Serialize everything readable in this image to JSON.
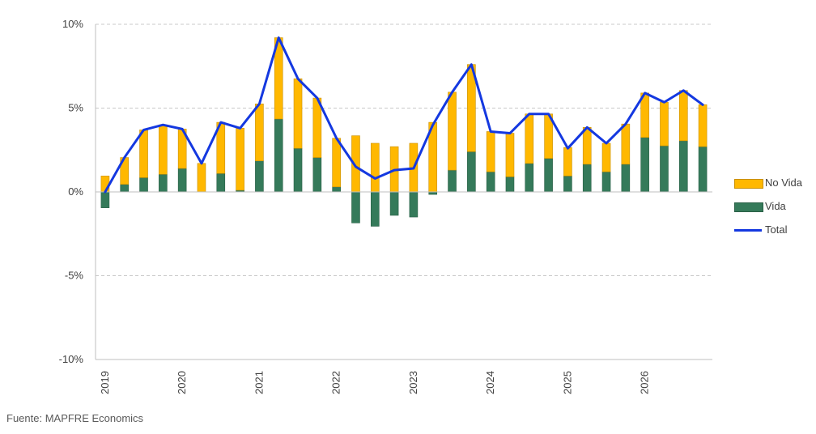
{
  "chart_data": {
    "type": "bar",
    "stacked": true,
    "y_tick_labels": [
      "10%",
      "5%",
      "0%",
      "-5%",
      "-10%"
    ],
    "y_ticks": [
      10,
      5,
      0,
      -5,
      -10
    ],
    "ylim": [
      -10,
      10
    ],
    "x_tick_labels": [
      "2019",
      "2020",
      "2021",
      "2022",
      "2023",
      "2024",
      "2025",
      "2026"
    ],
    "grid": true,
    "legend_position": "right",
    "categories": [
      "2019Q1",
      "2019Q2",
      "2019Q3",
      "2019Q4",
      "2020Q1",
      "2020Q2",
      "2020Q3",
      "2020Q4",
      "2021Q1",
      "2021Q2",
      "2021Q3",
      "2021Q4",
      "2022Q1",
      "2022Q2",
      "2022Q3",
      "2022Q4",
      "2023Q1",
      "2023Q2",
      "2023Q3",
      "2023Q4",
      "2024Q1",
      "2024Q2",
      "2024Q3",
      "2024Q4",
      "2025Q1",
      "2025Q2",
      "2025Q3",
      "2025Q4",
      "2026Q1",
      "2026Q2",
      "2026Q3",
      "2026Q4"
    ],
    "series": [
      {
        "name": "No Vida",
        "type": "bar",
        "color": "#FFB800",
        "values": [
          0.95,
          1.6,
          2.85,
          2.95,
          2.35,
          1.7,
          3.05,
          3.7,
          3.4,
          4.85,
          4.15,
          3.55,
          2.9,
          3.35,
          2.9,
          2.7,
          2.9,
          4.15,
          4.65,
          5.2,
          2.4,
          2.6,
          2.95,
          2.65,
          1.7,
          2.2,
          1.7,
          2.4,
          2.65,
          2.6,
          3.0,
          2.5
        ]
      },
      {
        "name": "Vida",
        "type": "bar",
        "color": "#357A5A",
        "values": [
          -0.95,
          0.45,
          0.85,
          1.05,
          1.4,
          0.0,
          1.1,
          0.1,
          1.85,
          4.35,
          2.6,
          2.05,
          0.3,
          -1.85,
          -2.05,
          -1.4,
          -1.5,
          -0.15,
          1.3,
          2.4,
          1.2,
          0.9,
          1.7,
          2.0,
          0.95,
          1.65,
          1.2,
          1.65,
          3.25,
          2.75,
          3.05,
          2.7
        ]
      },
      {
        "name": "Total",
        "type": "line",
        "color": "#1438E0",
        "values": [
          0.0,
          2.05,
          3.7,
          4.0,
          3.75,
          1.7,
          4.15,
          3.8,
          5.25,
          9.2,
          6.75,
          5.6,
          3.2,
          1.5,
          0.8,
          1.3,
          1.4,
          4.0,
          5.95,
          7.6,
          3.6,
          3.5,
          4.65,
          4.65,
          2.6,
          3.85,
          2.9,
          4.05,
          5.9,
          5.35,
          6.05,
          5.2
        ]
      }
    ]
  },
  "legend": [
    {
      "label": "No Vida",
      "kind": "bar",
      "color": "#FFB800"
    },
    {
      "label": "Vida",
      "kind": "bar",
      "color": "#357A5A"
    },
    {
      "label": "Total",
      "kind": "line",
      "color": "#1438E0"
    }
  ],
  "source": "Fuente: MAPFRE Economics"
}
